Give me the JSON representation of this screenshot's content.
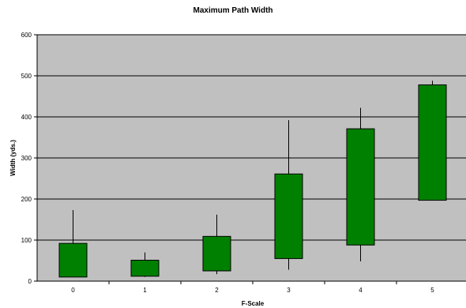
{
  "chart_data": {
    "type": "box",
    "title": "Maximum Path Width",
    "xlabel": "F-Scale",
    "ylabel": "Width (yds.)",
    "ylim": [
      0,
      600
    ],
    "yticks": [
      0,
      100,
      200,
      300,
      400,
      500,
      600
    ],
    "categories": [
      "0",
      "1",
      "2",
      "3",
      "4",
      "5"
    ],
    "boxes": [
      {
        "category": "0",
        "whisker_low": 10,
        "q1": 10,
        "q3": 92,
        "whisker_high": 173
      },
      {
        "category": "1",
        "whisker_low": 10,
        "q1": 12,
        "q3": 51,
        "whisker_high": 70
      },
      {
        "category": "2",
        "whisker_low": 17,
        "q1": 25,
        "q3": 109,
        "whisker_high": 162
      },
      {
        "category": "3",
        "whisker_low": 28,
        "q1": 55,
        "q3": 261,
        "whisker_high": 392
      },
      {
        "category": "4",
        "whisker_low": 48,
        "q1": 88,
        "q3": 371,
        "whisker_high": 422
      },
      {
        "category": "5",
        "whisker_low": 197,
        "q1": 197,
        "q3": 478,
        "whisker_high": 488
      }
    ],
    "grid": true,
    "legend": "none",
    "colors": {
      "plot_background": "#c0c0c0",
      "box_fill": "#008000",
      "box_stroke": "#000000",
      "gridline": "#000000"
    }
  }
}
